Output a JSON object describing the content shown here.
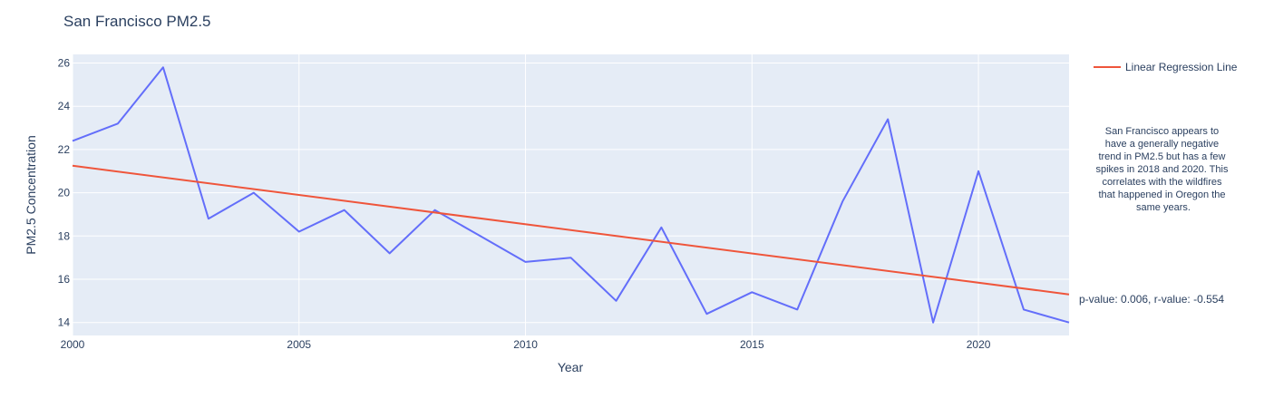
{
  "chart_data": {
    "type": "line",
    "title": "San Francisco PM2.5",
    "xlabel": "Year",
    "ylabel": "PM2.5 Concentration",
    "xlim": [
      2000,
      2022
    ],
    "ylim": [
      13.4,
      26.4
    ],
    "xticks": [
      2000,
      2005,
      2010,
      2015,
      2020
    ],
    "yticks": [
      14,
      16,
      18,
      20,
      22,
      24,
      26
    ],
    "grid": true,
    "background": "#E5ECF6",
    "series": [
      {
        "color": "#636EFA",
        "x": [
          2000,
          2001,
          2002,
          2003,
          2004,
          2005,
          2006,
          2007,
          2008,
          2009,
          2010,
          2011,
          2012,
          2013,
          2014,
          2015,
          2016,
          2017,
          2018,
          2019,
          2020,
          2021,
          2022
        ],
        "y": [
          22.4,
          23.2,
          25.8,
          18.8,
          20.0,
          18.2,
          19.2,
          17.2,
          19.2,
          18.0,
          16.8,
          17.0,
          15.0,
          18.4,
          14.4,
          15.4,
          14.6,
          19.6,
          23.4,
          14.0,
          21.0,
          14.6,
          14.0
        ]
      },
      {
        "name": "Linear Regression Line",
        "color": "#EF553B",
        "x": [
          2000,
          2022
        ],
        "y": [
          21.25,
          15.3
        ]
      }
    ],
    "legend_position": "top-right",
    "stats_text": "p-value: 0.006, r-value: -0.554",
    "note_lines": [
      "San Francisco appears to",
      "have a generally negative",
      "trend in PM2.5 but has a few",
      "spikes in 2018 and 2020. This",
      "correlates with the wildfires",
      "that happened in Oregon the",
      "same years."
    ]
  }
}
